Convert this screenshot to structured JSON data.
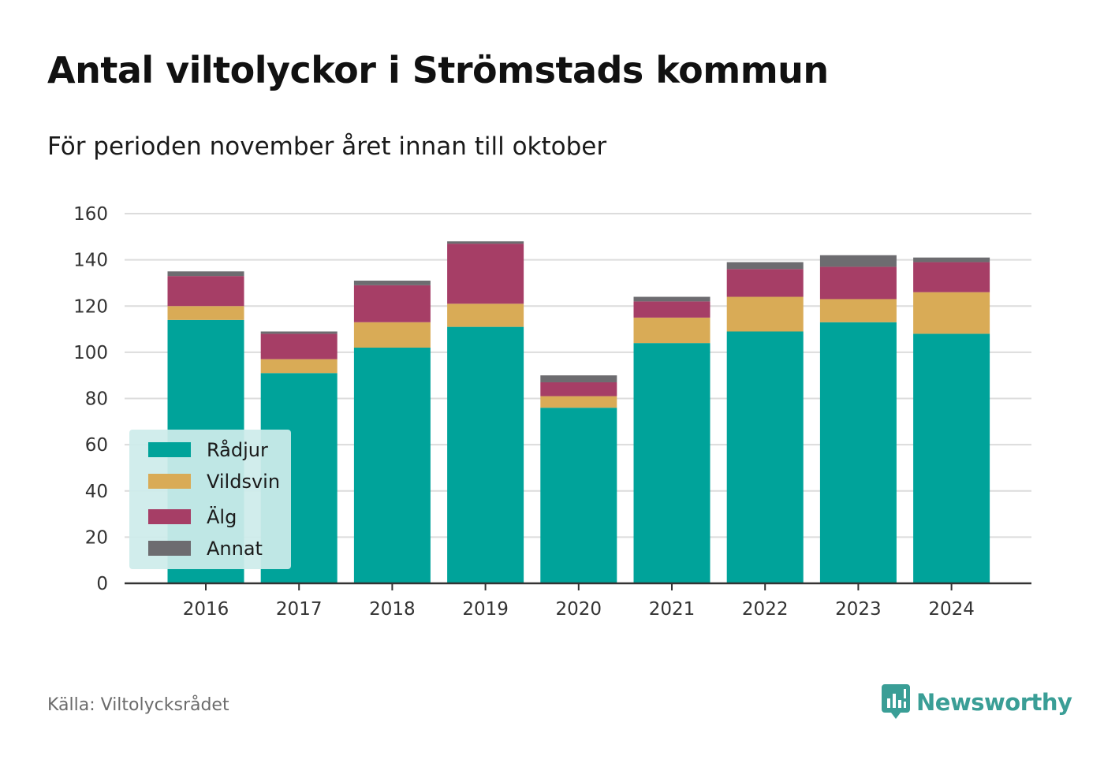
{
  "header": {
    "title": "Antal viltolyckor i Strömstads kommun",
    "subtitle": "För perioden november året innan till oktober"
  },
  "footer": {
    "source": "Källa: Viltolycksrådet",
    "brand": "Newsworthy"
  },
  "colors": {
    "Rådjur": "#00a39a",
    "Vildsvin": "#d9ab56",
    "Älg": "#a63e66",
    "Annat": "#6d6c70",
    "grid": "#dcdcdc",
    "axis": "#333333",
    "brand": "#3a9e96",
    "legend_bg": "#cdeceb"
  },
  "chart_data": {
    "type": "bar",
    "stacked": true,
    "categories": [
      "2016",
      "2017",
      "2018",
      "2019",
      "2020",
      "2021",
      "2022",
      "2023",
      "2024"
    ],
    "series": [
      {
        "name": "Rådjur",
        "values": [
          114,
          91,
          102,
          111,
          76,
          104,
          109,
          113,
          108
        ]
      },
      {
        "name": "Vildsvin",
        "values": [
          6,
          6,
          11,
          10,
          5,
          11,
          15,
          10,
          18
        ]
      },
      {
        "name": "Älg",
        "values": [
          13,
          11,
          16,
          26,
          6,
          7,
          12,
          14,
          13
        ]
      },
      {
        "name": "Annat",
        "values": [
          2,
          1,
          2,
          1,
          3,
          2,
          3,
          5,
          2
        ]
      }
    ],
    "ylim": [
      0,
      160
    ],
    "yticks": [
      0,
      20,
      40,
      60,
      80,
      100,
      120,
      140,
      160
    ],
    "grid": true,
    "legend_position": "bottom-left"
  }
}
